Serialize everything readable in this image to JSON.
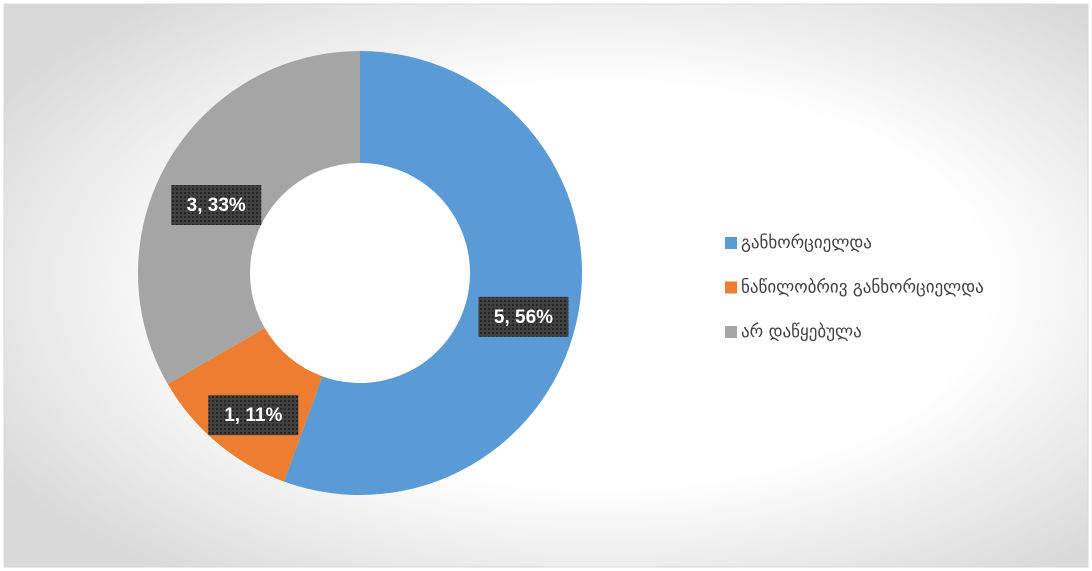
{
  "chart_data": {
    "type": "donut",
    "categories": [
      "განხორციელდა",
      "ნაწილობრივ განხორციელდა",
      "არ დაწყებულა"
    ],
    "values": [
      5,
      1,
      3
    ],
    "value_labels": [
      "5, 56%",
      "1, 11%",
      "3, 33%"
    ],
    "colors": [
      "#5b9bd5",
      "#ed7d31",
      "#a5a5a5"
    ],
    "legend": "right"
  }
}
